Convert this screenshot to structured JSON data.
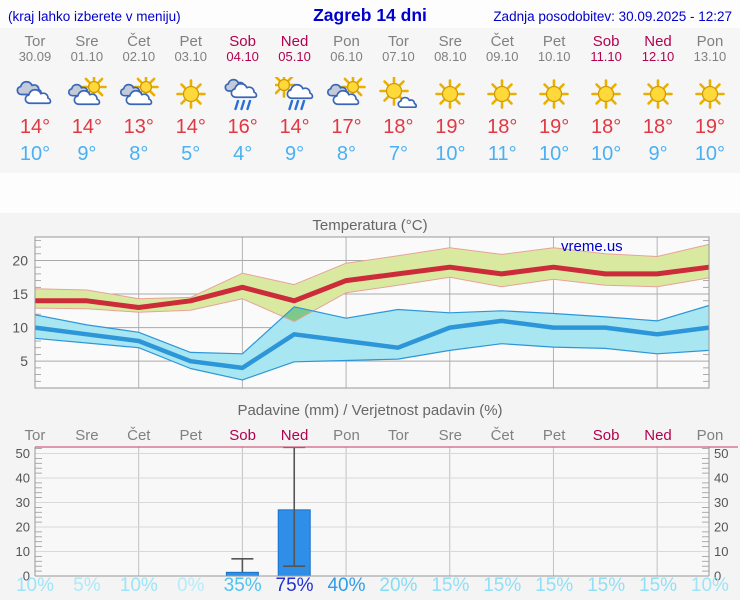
{
  "header": {
    "left_note": "(kraj lahko izberete v meniju)",
    "title": "Zagreb 14 dni",
    "updated": "Zadnja posodobitev: 30.09.2025 - 12:27"
  },
  "watermark": "vreme.us",
  "days": [
    {
      "name": "Tor",
      "date": "30.09",
      "weekend": false,
      "icon": "cloudy",
      "tmax": "14°",
      "tmin": "10°",
      "prob": "10%",
      "prob_color": "#9ce4f8"
    },
    {
      "name": "Sre",
      "date": "01.10",
      "weekend": false,
      "icon": "partly-cloudy",
      "tmax": "14°",
      "tmin": "9°",
      "prob": "5%",
      "prob_color": "#ace9f9"
    },
    {
      "name": "Čet",
      "date": "02.10",
      "weekend": false,
      "icon": "partly-cloudy",
      "tmax": "13°",
      "tmin": "8°",
      "prob": "10%",
      "prob_color": "#9ce4f8"
    },
    {
      "name": "Pet",
      "date": "03.10",
      "weekend": false,
      "icon": "sunny",
      "tmax": "14°",
      "tmin": "5°",
      "prob": "0%",
      "prob_color": "#b6ecfa"
    },
    {
      "name": "Sob",
      "date": "04.10",
      "weekend": true,
      "icon": "rain",
      "tmax": "16°",
      "tmin": "4°",
      "prob": "35%",
      "prob_color": "#4cc2f1"
    },
    {
      "name": "Ned",
      "date": "05.10",
      "weekend": true,
      "icon": "rain-sun",
      "tmax": "14°",
      "tmin": "9°",
      "prob": "75%",
      "prob_color": "#2031d6"
    },
    {
      "name": "Pon",
      "date": "06.10",
      "weekend": false,
      "icon": "partly-cloudy",
      "tmax": "17°",
      "tmin": "8°",
      "prob": "40%",
      "prob_color": "#2f9ce9"
    },
    {
      "name": "Tor",
      "date": "07.10",
      "weekend": false,
      "icon": "mostly-sunny",
      "tmax": "18°",
      "tmin": "7°",
      "prob": "20%",
      "prob_color": "#85dcf5"
    },
    {
      "name": "Sre",
      "date": "08.10",
      "weekend": false,
      "icon": "sunny",
      "tmax": "19°",
      "tmin": "10°",
      "prob": "15%",
      "prob_color": "#8fe0f6"
    },
    {
      "name": "Čet",
      "date": "09.10",
      "weekend": false,
      "icon": "sunny",
      "tmax": "18°",
      "tmin": "11°",
      "prob": "15%",
      "prob_color": "#8fe0f6"
    },
    {
      "name": "Pet",
      "date": "10.10",
      "weekend": false,
      "icon": "sunny",
      "tmax": "19°",
      "tmin": "10°",
      "prob": "15%",
      "prob_color": "#8fe0f6"
    },
    {
      "name": "Sob",
      "date": "11.10",
      "weekend": true,
      "icon": "sunny",
      "tmax": "18°",
      "tmin": "10°",
      "prob": "15%",
      "prob_color": "#8fe0f6"
    },
    {
      "name": "Ned",
      "date": "12.10",
      "weekend": true,
      "icon": "sunny",
      "tmax": "18°",
      "tmin": "9°",
      "prob": "15%",
      "prob_color": "#8fe0f6"
    },
    {
      "name": "Pon",
      "date": "13.10",
      "weekend": false,
      "icon": "sunny",
      "tmax": "19°",
      "tmin": "10°",
      "prob": "10%",
      "prob_color": "#9ce4f8"
    }
  ],
  "chart_data": [
    {
      "type": "line",
      "title": "Temperatura (°C)",
      "categories": [
        "Tor 30.09",
        "Sre 01.10",
        "Čet 02.10",
        "Pet 03.10",
        "Sob 04.10",
        "Ned 05.10",
        "Pon 06.10",
        "Tor 07.10",
        "Sre 08.10",
        "Čet 09.10",
        "Pet 10.10",
        "Sob 11.10",
        "Ned 12.10",
        "Pon 13.10"
      ],
      "series": [
        {
          "name": "max-temp",
          "color": "#cc2b3a",
          "values": [
            14,
            14,
            13,
            14,
            16,
            14,
            17,
            18,
            19,
            18,
            19,
            18,
            18,
            19
          ]
        },
        {
          "name": "max-temp-band-upper",
          "values": [
            15.8,
            15.6,
            14.3,
            14.5,
            18.1,
            16.4,
            19.6,
            20.7,
            21.9,
            20.9,
            21.9,
            21.0,
            20.6,
            22.4
          ]
        },
        {
          "name": "max-temp-band-lower",
          "values": [
            12.9,
            12.8,
            12.3,
            12.6,
            14.3,
            10.9,
            15.2,
            16.3,
            17.5,
            16.1,
            17.2,
            16.3,
            16.1,
            17.4
          ]
        },
        {
          "name": "min-temp",
          "color": "#2d96d9",
          "values": [
            10,
            9,
            8,
            5,
            4,
            9,
            8,
            7,
            10,
            11,
            10,
            10,
            9,
            10
          ]
        },
        {
          "name": "min-temp-band-upper",
          "values": [
            11.9,
            10.4,
            9.3,
            6.3,
            6.1,
            13.1,
            11.4,
            12.7,
            12.2,
            12.5,
            12.1,
            11.6,
            11.0,
            13.3
          ]
        },
        {
          "name": "min-temp-band-lower",
          "values": [
            8.4,
            7.7,
            7.0,
            3.9,
            2.2,
            4.9,
            5.1,
            5.3,
            6.6,
            7.6,
            7.1,
            6.9,
            6.1,
            6.6
          ]
        }
      ],
      "ylim": [
        1,
        23.5
      ],
      "yticks": [
        5,
        10,
        15,
        20
      ],
      "grid": true,
      "legend": "none",
      "band_max_fill": "#d9eaa0",
      "band_max_edge": "#e8a29a",
      "band_min_fill": "#a8e6f2",
      "overlap_fill": "#7cc98b"
    },
    {
      "type": "bar",
      "title": "Padavine (mm) / Verjetnost padavin (%)",
      "categories": [
        "Tor",
        "Sre",
        "Čet",
        "Pet",
        "Sob",
        "Ned",
        "Pon",
        "Tor",
        "Sre",
        "Čet",
        "Pet",
        "Sob",
        "Ned",
        "Pon"
      ],
      "values": [
        0,
        0,
        0,
        0,
        1.5,
        27,
        0,
        0,
        0,
        0,
        0,
        0,
        0,
        0
      ],
      "whiskers": [
        {
          "day_index": 4,
          "low": 1.5,
          "high": 7,
          "caps": [
            "high"
          ]
        },
        {
          "day_index": 5,
          "low": 4,
          "high": 52.5,
          "caps": [
            "low",
            "high"
          ]
        }
      ],
      "probabilities_pct": [
        10,
        5,
        10,
        0,
        35,
        75,
        40,
        20,
        15,
        15,
        15,
        15,
        15,
        10
      ],
      "ylim": [
        0,
        52.6
      ],
      "yticks": [
        0,
        10,
        20,
        30,
        40,
        50
      ],
      "bar_color": "#2e8ee8",
      "bar_border": "#1a72c8",
      "whisker_color": "#555555",
      "top_border_color": "#d06080"
    }
  ],
  "colors": {
    "header_text": "#0000cc",
    "weekday": "#808080",
    "weekend": "#b2024f",
    "tmax": "#e23843",
    "tmin": "#49b0f2",
    "chart_title": "#666666",
    "watermark": "#0000cc"
  }
}
